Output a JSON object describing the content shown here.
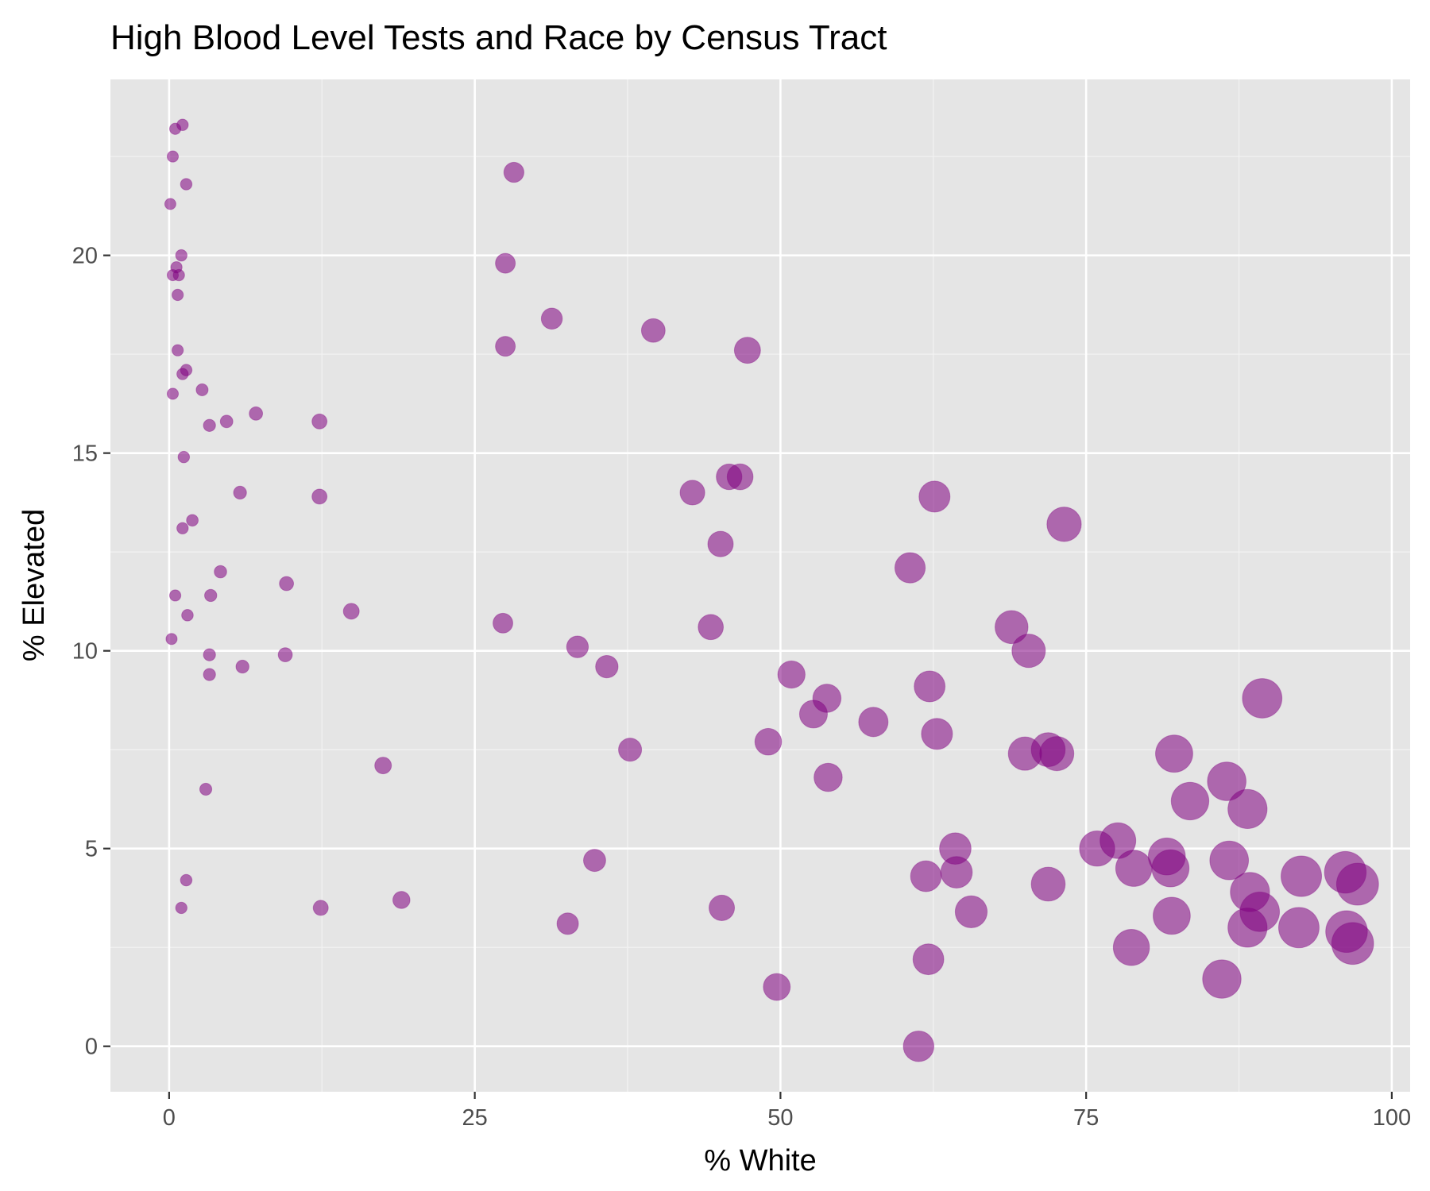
{
  "chart_data": {
    "type": "scatter",
    "title": "High Blood Level Tests and Race by Census Tract",
    "xlabel": "% White",
    "ylabel": "% Elevated",
    "xlim": [
      -4.8,
      101.5
    ],
    "ylim": [
      -1.15,
      24.45
    ],
    "x_ticks": [
      0,
      25,
      50,
      75,
      100
    ],
    "y_ticks": [
      0,
      5,
      10,
      15,
      20
    ],
    "grid": true,
    "legend": "none",
    "point_color": "#800080",
    "point_alpha": 0.55,
    "size_encodes": "% White (radius grows with x)",
    "points": [
      {
        "x": 1.1,
        "y": 23.3
      },
      {
        "x": 0.5,
        "y": 23.2
      },
      {
        "x": 0.3,
        "y": 22.5
      },
      {
        "x": 1.4,
        "y": 21.8
      },
      {
        "x": 0.1,
        "y": 21.3
      },
      {
        "x": 1.0,
        "y": 20.0
      },
      {
        "x": 0.6,
        "y": 19.7
      },
      {
        "x": 0.3,
        "y": 19.5
      },
      {
        "x": 0.8,
        "y": 19.5
      },
      {
        "x": 0.7,
        "y": 19.0
      },
      {
        "x": 0.7,
        "y": 17.6
      },
      {
        "x": 1.4,
        "y": 17.1
      },
      {
        "x": 1.1,
        "y": 17.0
      },
      {
        "x": 0.3,
        "y": 16.5
      },
      {
        "x": 2.7,
        "y": 16.6
      },
      {
        "x": 3.3,
        "y": 15.7
      },
      {
        "x": 4.7,
        "y": 15.8
      },
      {
        "x": 7.1,
        "y": 16.0
      },
      {
        "x": 12.3,
        "y": 15.8
      },
      {
        "x": 1.2,
        "y": 14.9
      },
      {
        "x": 5.8,
        "y": 14.0
      },
      {
        "x": 12.3,
        "y": 13.9
      },
      {
        "x": 1.9,
        "y": 13.3
      },
      {
        "x": 1.1,
        "y": 13.1
      },
      {
        "x": 4.2,
        "y": 12.0
      },
      {
        "x": 9.6,
        "y": 11.7
      },
      {
        "x": 0.5,
        "y": 11.4
      },
      {
        "x": 3.4,
        "y": 11.4
      },
      {
        "x": 14.9,
        "y": 11.0
      },
      {
        "x": 1.5,
        "y": 10.9
      },
      {
        "x": 0.2,
        "y": 10.3
      },
      {
        "x": 3.3,
        "y": 9.9
      },
      {
        "x": 9.5,
        "y": 9.9
      },
      {
        "x": 6.0,
        "y": 9.6
      },
      {
        "x": 3.3,
        "y": 9.4
      },
      {
        "x": 17.5,
        "y": 7.1
      },
      {
        "x": 3.0,
        "y": 6.5
      },
      {
        "x": 1.4,
        "y": 4.2
      },
      {
        "x": 1.0,
        "y": 3.5
      },
      {
        "x": 12.4,
        "y": 3.5
      },
      {
        "x": 19.0,
        "y": 3.7
      },
      {
        "x": 28.2,
        "y": 22.1
      },
      {
        "x": 27.5,
        "y": 19.8
      },
      {
        "x": 27.5,
        "y": 17.7
      },
      {
        "x": 31.3,
        "y": 18.4
      },
      {
        "x": 39.6,
        "y": 18.1
      },
      {
        "x": 47.3,
        "y": 17.6
      },
      {
        "x": 42.8,
        "y": 14.0
      },
      {
        "x": 45.8,
        "y": 14.4
      },
      {
        "x": 46.7,
        "y": 14.4
      },
      {
        "x": 45.1,
        "y": 12.7
      },
      {
        "x": 27.3,
        "y": 10.7
      },
      {
        "x": 33.4,
        "y": 10.1
      },
      {
        "x": 35.8,
        "y": 9.6
      },
      {
        "x": 44.3,
        "y": 10.6
      },
      {
        "x": 37.7,
        "y": 7.5
      },
      {
        "x": 34.8,
        "y": 4.7
      },
      {
        "x": 32.6,
        "y": 3.1
      },
      {
        "x": 45.2,
        "y": 3.5
      },
      {
        "x": 50.9,
        "y": 9.4
      },
      {
        "x": 53.8,
        "y": 8.8
      },
      {
        "x": 52.7,
        "y": 8.4
      },
      {
        "x": 57.6,
        "y": 8.2
      },
      {
        "x": 49.0,
        "y": 7.7
      },
      {
        "x": 53.9,
        "y": 6.8
      },
      {
        "x": 49.7,
        "y": 1.5
      },
      {
        "x": 60.6,
        "y": 12.1
      },
      {
        "x": 62.6,
        "y": 13.9
      },
      {
        "x": 62.2,
        "y": 9.1
      },
      {
        "x": 62.8,
        "y": 7.9
      },
      {
        "x": 61.9,
        "y": 4.3
      },
      {
        "x": 64.3,
        "y": 5.0
      },
      {
        "x": 64.4,
        "y": 4.4
      },
      {
        "x": 65.6,
        "y": 3.4
      },
      {
        "x": 62.1,
        "y": 2.2
      },
      {
        "x": 61.3,
        "y": 0.0
      },
      {
        "x": 73.2,
        "y": 13.2
      },
      {
        "x": 68.9,
        "y": 10.6
      },
      {
        "x": 70.3,
        "y": 10.0
      },
      {
        "x": 70.0,
        "y": 7.4
      },
      {
        "x": 71.9,
        "y": 7.5
      },
      {
        "x": 72.6,
        "y": 7.4
      },
      {
        "x": 71.9,
        "y": 4.1
      },
      {
        "x": 75.9,
        "y": 5.0
      },
      {
        "x": 77.6,
        "y": 5.2
      },
      {
        "x": 78.9,
        "y": 4.5
      },
      {
        "x": 78.7,
        "y": 2.5
      },
      {
        "x": 81.6,
        "y": 4.8
      },
      {
        "x": 81.9,
        "y": 4.5
      },
      {
        "x": 82.2,
        "y": 7.4
      },
      {
        "x": 82.0,
        "y": 3.3
      },
      {
        "x": 83.5,
        "y": 6.2
      },
      {
        "x": 86.5,
        "y": 6.7
      },
      {
        "x": 86.7,
        "y": 4.7
      },
      {
        "x": 88.2,
        "y": 6.0
      },
      {
        "x": 88.4,
        "y": 3.9
      },
      {
        "x": 89.2,
        "y": 3.4
      },
      {
        "x": 88.2,
        "y": 3.0
      },
      {
        "x": 86.1,
        "y": 1.7
      },
      {
        "x": 89.4,
        "y": 8.8
      },
      {
        "x": 92.6,
        "y": 4.3
      },
      {
        "x": 92.4,
        "y": 3.0
      },
      {
        "x": 96.2,
        "y": 4.4
      },
      {
        "x": 97.2,
        "y": 4.1
      },
      {
        "x": 96.3,
        "y": 2.9
      },
      {
        "x": 96.8,
        "y": 2.6
      }
    ]
  }
}
